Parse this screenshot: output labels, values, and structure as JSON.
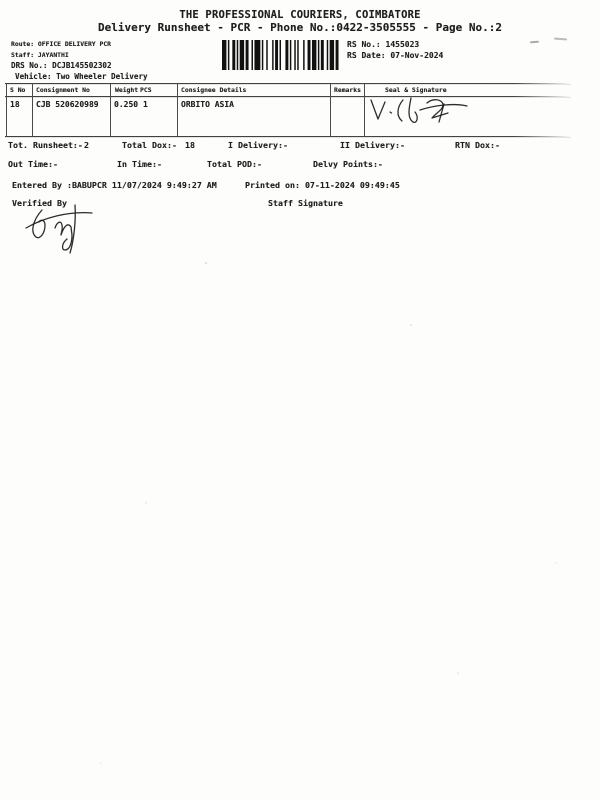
{
  "document": {
    "title": "THE PROFESSIONAL COURIERS, COIMBATORE",
    "subtitle": "Delivery Runsheet - PCR - Phone No.:0422-3505555 - Page No.:2"
  },
  "info": {
    "route": "Route: OFFICE DELIVERY PCR",
    "staff": "Staff: JAYANTHI",
    "drs_no": "DRS No.: DCJB145502302",
    "vehicle": "Vehicle: Two Wheeler Delivery",
    "rs_no": "RS No.: 1455023",
    "rs_date": "RS Date: 07-Nov-2024"
  },
  "icons": {
    "barcode": "barcode",
    "seal_signature": "handwritten-signature",
    "verified_signature": "handwritten-signature"
  },
  "table": {
    "headers": [
      "S No",
      "Consignment No",
      "Weight",
      "PCS",
      "Consignee Details",
      "Remarks",
      "Seal & Signature"
    ],
    "row": {
      "s_no": "18",
      "consignment_no": "CJB 520620989",
      "weight": "0.250",
      "pcs": "1",
      "consignee": "ORBITO ASIA",
      "remarks": ""
    }
  },
  "summary": {
    "tot_runsheet_label": "Tot. Runsheet:-",
    "tot_runsheet_value": "2",
    "total_dox_label": "Total Dox:-",
    "total_dox_value": "18",
    "i_delivery": "I Delivery:-",
    "ii_delivery": "II Delivery:-",
    "rtn_dox": "RTN Dox:-",
    "out_time": "Out Time:-",
    "in_time": "In Time:-",
    "total_pod": "Total POD:-",
    "delvy_points": "Delvy Points:-"
  },
  "footer": {
    "entered_by": "Entered By :BABUPCR 11/07/2024 9:49:27 AM",
    "printed_on": "Printed on: 07-11-2024 09:49:45",
    "verified_by": "Verified By",
    "staff_signature": "Staff Signature"
  }
}
